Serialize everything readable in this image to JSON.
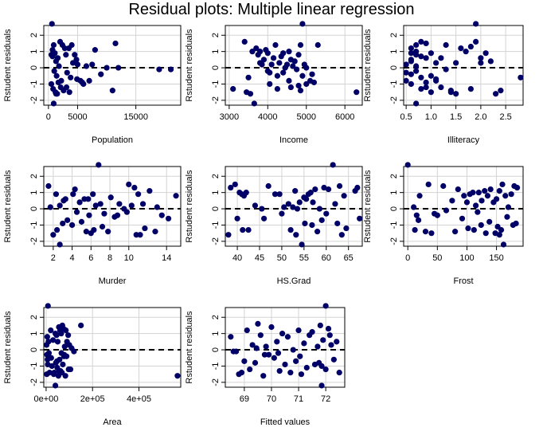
{
  "title": "Residual plots: Multiple linear regression",
  "chart_data": [
    {
      "type": "scatter",
      "xlabel": "Population",
      "ylabel": "Rstudent residuals",
      "xlim": [
        -800,
        22700
      ],
      "ylim": [
        -2.3,
        2.6
      ],
      "xticks": [
        0,
        5000,
        15000
      ],
      "xtick_labels": [
        "0",
        "5000",
        "15000"
      ],
      "yticks": [
        -2,
        -1,
        0,
        1,
        2
      ],
      "ytick_labels": [
        "-2",
        "-1",
        "0",
        "1",
        "2"
      ],
      "grid": true,
      "reference_line": 0,
      "x": [
        600,
        900,
        700,
        1100,
        1300,
        1600,
        2000,
        1800,
        2400,
        2800,
        3000,
        3500,
        4000,
        4500,
        5000,
        1000,
        1400,
        2200,
        3200,
        3800,
        4800,
        5500,
        6000,
        7000,
        8000,
        9000,
        10000,
        11000,
        11500,
        12000,
        19000,
        21000,
        500,
        800,
        1200,
        1500,
        1700,
        2100,
        2600,
        3100,
        3600,
        4200,
        4900,
        5800,
        6500,
        7500,
        500,
        700,
        900,
        1300
      ],
      "y": [
        2.7,
        1.4,
        1.1,
        0.9,
        0.4,
        0.6,
        1.6,
        0.1,
        1.4,
        1.2,
        0.8,
        1.2,
        1.4,
        0.8,
        0.2,
        -0.2,
        -0.5,
        -0.8,
        -0.3,
        -0.6,
        0.5,
        -0.8,
        -1.0,
        -0.8,
        1.1,
        -0.4,
        0.0,
        -1.4,
        1.5,
        0.0,
        -0.1,
        -0.1,
        -1.0,
        -1.3,
        -1.5,
        -1.6,
        -0.9,
        -1.2,
        -1.4,
        -1.2,
        -1.5,
        0.3,
        -0.7,
        -0.9,
        0.1,
        0.2,
        0.8,
        0.7,
        -2.2,
        -1.6
      ]
    },
    {
      "type": "scatter",
      "xlabel": "Income",
      "ylabel": "Rstudent residuals",
      "xlim": [
        2900,
        6450
      ],
      "ylim": [
        -2.3,
        2.6
      ],
      "xticks": [
        3000,
        4000,
        5000,
        6000
      ],
      "xtick_labels": [
        "3000",
        "4000",
        "5000",
        "6000"
      ],
      "yticks": [
        -2,
        -1,
        0,
        1,
        2
      ],
      "ytick_labels": [
        "-2",
        "-1",
        "0",
        "1",
        "2"
      ],
      "grid": true,
      "reference_line": 0,
      "x": [
        4900,
        3400,
        3500,
        3600,
        3700,
        3750,
        3800,
        3850,
        3900,
        3950,
        4000,
        4050,
        4100,
        4150,
        4200,
        4250,
        4300,
        4350,
        4400,
        4450,
        4500,
        4550,
        4600,
        4650,
        4700,
        4750,
        4800,
        4850,
        4900,
        4950,
        5000,
        5100,
        5200,
        5300,
        3100,
        3450,
        3550,
        3650,
        4050,
        4250,
        4550,
        4850,
        5150,
        6300,
        3800,
        4000,
        4400,
        4600,
        4800,
        5000
      ],
      "y": [
        2.7,
        1.6,
        -0.6,
        1.0,
        1.2,
        0.8,
        1.0,
        0.2,
        0.5,
        1.1,
        0.9,
        -0.3,
        0.2,
        0.6,
        1.4,
        -0.5,
        0.3,
        0.7,
        0.9,
        0.0,
        0.2,
        1.0,
        0.5,
        0.1,
        0.4,
        -0.1,
        0.8,
        1.4,
        -0.5,
        0.2,
        0.0,
        -0.8,
        -0.9,
        1.4,
        -1.3,
        -1.5,
        -1.6,
        -2.2,
        -1.0,
        -1.3,
        -0.8,
        -1.4,
        -0.4,
        -1.5,
        0.3,
        -0.2,
        -0.3,
        -1.2,
        -1.1,
        -1.0
      ]
    },
    {
      "type": "scatter",
      "xlabel": "Illiteracy",
      "ylabel": "Rstudent residuals",
      "xlim": [
        0.45,
        2.85
      ],
      "ylim": [
        -2.3,
        2.6
      ],
      "xticks": [
        0.5,
        1.0,
        1.5,
        2.0,
        2.5
      ],
      "xtick_labels": [
        "0.5",
        "1.0",
        "1.5",
        "2.0",
        "2.5"
      ],
      "yticks": [
        -2,
        -1,
        0,
        1,
        2
      ],
      "ytick_labels": [
        "-2",
        "-1",
        "0",
        "1",
        "2"
      ],
      "grid": true,
      "reference_line": 0,
      "x": [
        1.9,
        0.5,
        0.6,
        0.6,
        0.6,
        0.7,
        0.7,
        0.8,
        0.8,
        0.9,
        0.9,
        1.0,
        1.1,
        1.2,
        1.3,
        1.5,
        1.6,
        1.7,
        1.8,
        1.9,
        2.0,
        2.1,
        2.2,
        0.5,
        0.6,
        0.7,
        0.7,
        0.8,
        0.9,
        1.0,
        1.1,
        1.2,
        1.4,
        1.5,
        1.8,
        2.3,
        2.4,
        2.8,
        0.6,
        0.7,
        0.8,
        0.9,
        1.0,
        1.1,
        1.3,
        2.0,
        0.6,
        0.7,
        0.5,
        1.4
      ],
      "y": [
        2.7,
        0.2,
        1.2,
        0.9,
        0.4,
        1.4,
        1.0,
        0.7,
        1.6,
        1.5,
        0.6,
        0.9,
        0.3,
        0.6,
        1.4,
        0.3,
        1.2,
        1.0,
        1.3,
        1.6,
        0.6,
        0.9,
        0.4,
        -0.8,
        -0.4,
        -0.2,
        0.1,
        -0.6,
        -1.2,
        -0.5,
        -0.8,
        -1.2,
        -1.4,
        -1.6,
        -1.3,
        -1.6,
        -1.4,
        -0.6,
        -1.0,
        -2.2,
        -1.3,
        -0.9,
        -1.5,
        -0.7,
        -0.1,
        0.3,
        0.5,
        0.8,
        -0.3,
        -1.5
      ]
    },
    {
      "type": "scatter",
      "xlabel": "Murder",
      "ylabel": "Rstudent residuals",
      "xlim": [
        1.0,
        15.5
      ],
      "ylim": [
        -2.3,
        2.6
      ],
      "xticks": [
        2,
        4,
        6,
        8,
        10,
        14
      ],
      "xtick_labels": [
        "2",
        "4",
        "6",
        "8",
        "10",
        "14"
      ],
      "yticks": [
        -2,
        -1,
        0,
        1,
        2
      ],
      "ytick_labels": [
        "-2",
        "-1",
        "0",
        "1",
        "2"
      ],
      "grid": true,
      "reference_line": 0,
      "x": [
        6.8,
        1.5,
        1.7,
        2.3,
        2.7,
        3.1,
        3.3,
        4.1,
        4.3,
        4.8,
        5.3,
        5.7,
        6.2,
        6.5,
        7.0,
        7.4,
        8.1,
        8.5,
        9.0,
        9.5,
        10.0,
        10.3,
        10.6,
        11.0,
        11.5,
        12.2,
        13.0,
        14.2,
        15.0,
        2.0,
        2.4,
        3.0,
        3.5,
        4.0,
        4.5,
        5.0,
        5.5,
        6.0,
        6.3,
        7.2,
        7.8,
        8.8,
        9.8,
        10.8,
        11.2,
        11.7,
        12.8,
        13.5,
        2.7,
        5.8
      ],
      "y": [
        2.7,
        1.4,
        0.1,
        0.9,
        0.2,
        0.5,
        0.6,
        0.9,
        1.2,
        0.4,
        0.6,
        0.6,
        0.9,
        0.2,
        0.3,
        -0.3,
        0.7,
        -0.5,
        0.3,
        0.0,
        1.5,
        0.2,
        1.3,
        0.9,
        0.3,
        1.1,
        0.1,
        -0.6,
        0.8,
        -1.6,
        -1.3,
        -0.9,
        -0.7,
        -1.0,
        -0.2,
        -0.8,
        -1.4,
        -1.5,
        -1.3,
        -1.1,
        -1.4,
        -0.4,
        -0.2,
        -1.6,
        -1.6,
        -1.2,
        -1.4,
        -0.4,
        -2.2,
        -0.4
      ]
    },
    {
      "type": "scatter",
      "xlabel": "HS.Grad",
      "ylabel": "Rstudent residuals",
      "xlim": [
        37.3,
        68.1
      ],
      "ylim": [
        -2.3,
        2.6
      ],
      "xticks": [
        40,
        45,
        50,
        55,
        60,
        65
      ],
      "xtick_labels": [
        "40",
        "45",
        "50",
        "55",
        "60",
        "65"
      ],
      "yticks": [
        -2,
        -1,
        0,
        1,
        2
      ],
      "ytick_labels": [
        "-2",
        "-1",
        "0",
        "1",
        "2"
      ],
      "grid": true,
      "reference_line": 0,
      "x": [
        61.5,
        38.5,
        39.5,
        40.5,
        41.0,
        41.5,
        42.0,
        44.0,
        45.5,
        47.0,
        48.5,
        49.5,
        50.5,
        51.5,
        52.5,
        53.0,
        53.5,
        54.0,
        55.0,
        55.5,
        56.0,
        56.5,
        57.0,
        57.5,
        58.5,
        59.5,
        60.5,
        62.0,
        63.0,
        64.0,
        66.5,
        67.0,
        38.0,
        40.0,
        41.2,
        42.5,
        46.0,
        50.0,
        52.0,
        53.2,
        54.5,
        55.2,
        56.8,
        58.0,
        59.0,
        60.0,
        62.5,
        63.5,
        64.5,
        67.5
      ],
      "y": [
        2.7,
        1.3,
        1.5,
        1.0,
        0.9,
        0.8,
        1.0,
        0.2,
        0.0,
        1.4,
        0.9,
        0.9,
        0.1,
        0.3,
        0.1,
        1.1,
        0.0,
        0.4,
        0.7,
        0.6,
        0.9,
        1.0,
        0.4,
        1.2,
        0.0,
        1.3,
        1.2,
        0.3,
        1.4,
        0.8,
        1.1,
        1.3,
        -1.6,
        -0.6,
        -1.3,
        -1.3,
        -0.6,
        -0.3,
        -1.3,
        -1.6,
        -2.2,
        -0.9,
        -1.0,
        -1.4,
        -0.7,
        -0.3,
        -0.9,
        -1.6,
        -1.2,
        -0.6
      ]
    },
    {
      "type": "scatter",
      "xlabel": "Frost",
      "ylabel": "Rstudent residuals",
      "xlim": [
        -7,
        195
      ],
      "ylim": [
        -2.3,
        2.6
      ],
      "xticks": [
        0,
        50,
        100,
        150
      ],
      "xtick_labels": [
        "0",
        "50",
        "100",
        "150"
      ],
      "yticks": [
        -2,
        -1,
        0,
        1,
        2
      ],
      "ytick_labels": [
        "-2",
        "-1",
        "0",
        "1",
        "2"
      ],
      "grid": true,
      "reference_line": 0,
      "x": [
        0,
        10,
        15,
        20,
        35,
        45,
        60,
        75,
        85,
        95,
        100,
        105,
        110,
        115,
        120,
        125,
        130,
        135,
        140,
        145,
        150,
        155,
        160,
        165,
        170,
        175,
        180,
        185,
        12,
        18,
        30,
        40,
        50,
        65,
        80,
        92,
        102,
        112,
        118,
        124,
        132,
        138,
        148,
        152,
        158,
        162,
        168,
        178,
        183,
        155
      ],
      "y": [
        2.7,
        0.1,
        -0.4,
        0.8,
        1.5,
        -0.3,
        1.4,
        0.5,
        1.2,
        0.8,
        0.4,
        0.9,
        1.0,
        0.2,
        1.0,
        0.5,
        1.1,
        0.8,
        1.2,
        0.4,
        0.6,
        1.1,
        1.5,
        0.8,
        0.1,
        0.9,
        1.4,
        1.3,
        -1.3,
        -0.7,
        -1.4,
        -1.5,
        -0.4,
        -0.1,
        -1.4,
        -0.6,
        -1.2,
        -1.3,
        -0.2,
        -1.0,
        -1.5,
        -0.8,
        -1.5,
        -1.1,
        -1.3,
        -2.2,
        -0.5,
        -1.0,
        -0.9,
        -1.6
      ]
    },
    {
      "type": "scatter",
      "xlabel": "Area",
      "ylabel": "Rstudent residuals",
      "xlim": [
        -10000,
        580000
      ],
      "ylim": [
        -2.3,
        2.6
      ],
      "xticks": [
        0,
        200000,
        400000
      ],
      "xtick_labels": [
        "0e+00",
        "2e+05",
        "4e+05"
      ],
      "yticks": [
        -2,
        -1,
        0,
        1,
        2
      ],
      "ytick_labels": [
        "-2",
        "-1",
        "0",
        "1",
        "2"
      ],
      "grid": true,
      "reference_line": 0,
      "x": [
        8000,
        2000,
        5000,
        10000,
        20000,
        30000,
        40000,
        45000,
        50000,
        55000,
        60000,
        65000,
        70000,
        75000,
        80000,
        85000,
        90000,
        95000,
        100000,
        110000,
        120000,
        150000,
        4000,
        6000,
        12000,
        25000,
        35000,
        42000,
        48000,
        53000,
        58000,
        62000,
        68000,
        72000,
        78000,
        83000,
        88000,
        97000,
        105000,
        3000,
        7000,
        15000,
        22000,
        33000,
        47000,
        56000,
        66000,
        77000,
        566000,
        40000
      ],
      "y": [
        2.7,
        0.3,
        0.8,
        0.5,
        1.2,
        0.6,
        1.0,
        0.9,
        0.5,
        1.4,
        1.2,
        1.0,
        1.5,
        1.3,
        0.2,
        1.2,
        0.5,
        0.9,
        0.3,
        0.1,
        -0.1,
        1.5,
        -0.3,
        -0.6,
        -0.2,
        -1.0,
        -1.4,
        -0.8,
        -1.1,
        -1.6,
        -0.6,
        -1.3,
        -1.4,
        -0.9,
        -0.3,
        -1.6,
        -0.4,
        -1.2,
        -1.2,
        -1.5,
        -0.9,
        -1.4,
        -0.5,
        -1.5,
        -0.7,
        -1.3,
        -0.2,
        -0.4,
        -1.6,
        -2.2
      ]
    },
    {
      "type": "scatter",
      "xlabel": "Fitted values",
      "ylabel": "Rstudent residuals",
      "xlim": [
        68.3,
        72.7
      ],
      "ylim": [
        -2.3,
        2.6
      ],
      "xticks": [
        69,
        70,
        71,
        72
      ],
      "xtick_labels": [
        "69",
        "70",
        "71",
        "72"
      ],
      "yticks": [
        -2,
        -1,
        0,
        1,
        2
      ],
      "ytick_labels": [
        "-2",
        "-1",
        "0",
        "1",
        "2"
      ],
      "grid": true,
      "reference_line": 0,
      "x": [
        72.0,
        68.5,
        68.7,
        68.9,
        69.1,
        69.3,
        69.5,
        69.6,
        69.8,
        70.0,
        70.2,
        70.4,
        70.6,
        70.8,
        71.0,
        71.2,
        71.4,
        71.5,
        71.7,
        71.8,
        71.9,
        72.1,
        72.2,
        72.4,
        68.8,
        69.0,
        69.2,
        69.4,
        69.7,
        69.9,
        70.1,
        70.3,
        70.5,
        70.7,
        70.9,
        71.1,
        71.3,
        71.6,
        71.85,
        72.0,
        72.3,
        72.5,
        68.6,
        69.45,
        70.25,
        71.05,
        71.75,
        72.15,
        71.85,
        69.75
      ],
      "y": [
        2.7,
        0.8,
        -0.1,
        -1.4,
        1.2,
        0.3,
        1.6,
        0.9,
        0.2,
        1.4,
        0.5,
        1.0,
        0.8,
        0.0,
        1.2,
        0.4,
        0.9,
        1.1,
        0.2,
        1.5,
        0.6,
        1.3,
        0.3,
        0.5,
        -1.5,
        -0.7,
        -1.2,
        -0.8,
        -1.6,
        -0.3,
        -0.5,
        -1.3,
        -0.9,
        -1.4,
        -0.7,
        -1.5,
        -1.1,
        -0.9,
        -1.0,
        -1.2,
        -0.6,
        -1.4,
        -0.1,
        0.1,
        -0.2,
        -0.4,
        -0.8,
        0.9,
        -2.2,
        -0.3
      ]
    }
  ]
}
